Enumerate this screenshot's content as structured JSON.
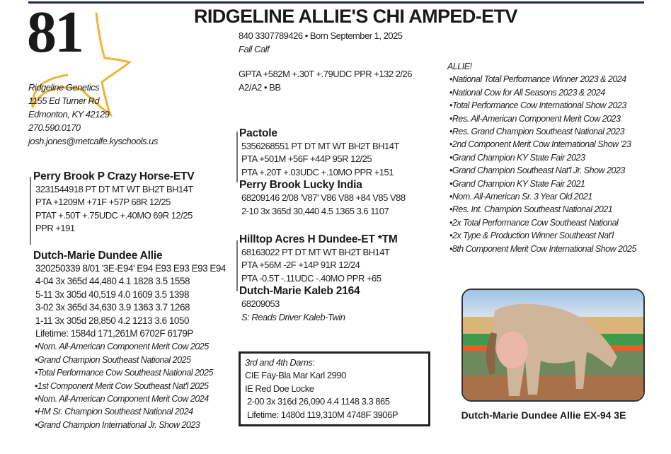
{
  "lot_number": "81",
  "title": "RIDGELINE ALLIE'S CHI AMPED-ETV",
  "animal": {
    "id_born": "840 3307789426  •  Born September 1, 2025",
    "class": "Fall Calf",
    "gpta": "GPTA +582M +.30T +.79UDC PPR +132 2/26",
    "genetics": "A2/A2 • BB"
  },
  "consignor": {
    "name": "Ridgeline Genetics",
    "street": "1155 Ed Turner Rd",
    "city": "Edmonton, KY  42129",
    "phone": "270.590.0170",
    "email": "josh.jones@metcalfe.kyschools.us"
  },
  "sire": {
    "name": "Perry Brook P Crazy Horse-ETV",
    "lines": [
      "3231544918  PT DT MT WT  BH2T BH14T",
      "PTA +1209M +71F +57P 68R 12/25",
      "PTAT +.50T +.75UDC +.40MO 69R 12/25",
      "PPR +191"
    ]
  },
  "dam": {
    "name": "Dutch-Marie Dundee Allie",
    "lines": [
      "320250339  8/01  '3E-E94' E94 E93 E93 E93 E94",
      "4-04  3x  365d  44,480  4.1  1828  3.5  1558",
      "5-11  3x  305d  40,519  4.0  1609  3.5  1398",
      "3-02  3x  365d  34,630  3.9  1363  3.7  1268",
      "1-11  3x  305d  28,850  4.2  1213  3.6  1050",
      "Lifetime:  1584d  171,261M  6702F  6179P"
    ],
    "honors": [
      "•Nom. All-American Component Merit Cow 2025",
      "•Grand Champion Southeast National 2025",
      "•Total Performance Cow Southeast National 2025",
      "•1st Component Merit Cow Southeast Nat'l 2025",
      "•Nom. All-American Component Merit Cow 2024",
      "•HM Sr. Champion Southeast National 2024",
      "•Grand Champion International Jr. Show 2023"
    ]
  },
  "sire_sire": {
    "name": "Pactole",
    "lines": [
      "5356268551   PT DT MT WT BH2T BH14T",
      "PTA +501M +56F +44P 95R 12/25",
      "PTA +.20T +.03UDC +.10MO PPR +151"
    ]
  },
  "sire_dam": {
    "name": "Perry Brook Lucky India",
    "lines": [
      "68209146  2/08  'V87'  V86 V88 +84 V85 V88",
      "2-10  3x  365d  30,440  4.5  1365  3.6  1107"
    ]
  },
  "dam_sire": {
    "name": "Hilltop Acres H Dundee-ET *TM",
    "lines": [
      "68163022  PT DT MT WT BH2T BH14T",
      "PTA +56M -2F +14P 91R 12/24",
      "PTA -0.5T  -.11UDC -.40MO PPR +65"
    ]
  },
  "dam_dam": {
    "name": "Dutch-Marie Kaleb 2164",
    "lines": [
      "68209053",
      "S:  Reads Driver Kaleb-Twin"
    ]
  },
  "dams_box": {
    "heading": "3rd and 4th Dams:",
    "lines": [
      "CIE Fay-Bla Mar Karl 2990",
      "IE Red Doe Locke",
      "2-00  3x  316d  26,090  4.4  1148  3.3  865",
      "Lifetime:  1480d  119,310M  4748F  3906P"
    ]
  },
  "allie": {
    "heading": "ALLIE!",
    "honors": [
      "•National Total Performance Winner 2023 & 2024",
      "•National Cow for All Seasons 2023 & 2024",
      "•Total Performance Cow International Show 2023",
      "•Res. All-American Component Merit Cow 2023",
      "•Res. Grand Champion Southeast National 2023",
      "•2nd Component Merit Cow International Show '23",
      "•Grand Champion KY State Fair 2023",
      "•Grand Champion Southeast Nat'l Jr. Show 2023",
      "•Grand Champion KY State Fair 2021",
      "•Nom. All-American Sr. 3 Year Old 2021",
      "•Res. Int. Champion Southeast National 2021",
      "•2x Total Performance Cow Southeast National",
      "•2x Type & Production Winner Southeast Nat'l",
      "•8th Component Merit Cow International Show 2025"
    ]
  },
  "photo_caption": "Dutch-Marie Dundee Allie EX-94 3E",
  "colors": {
    "rule": "#1c2a4a",
    "star": "#f2b233"
  }
}
